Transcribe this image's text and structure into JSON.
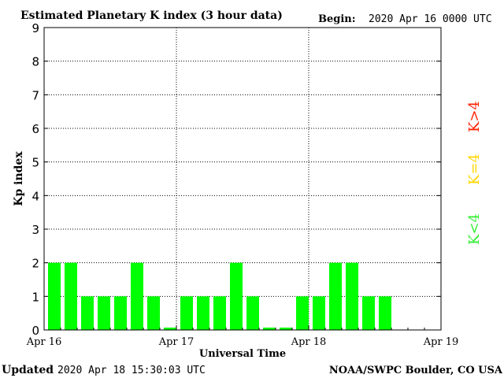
{
  "header": {
    "title": "Estimated Planetary K index (3 hour data)",
    "begin_label": "Begin:",
    "begin_value": "2020 Apr 16 0000 UTC"
  },
  "footer": {
    "updated_label": "Updated",
    "updated_value": "2020 Apr 18 15:30:03 UTC",
    "source": "NOAA/SWPC Boulder, CO USA"
  },
  "legend": [
    {
      "label": "K>4",
      "color": "#ff2200"
    },
    {
      "label": "K=4",
      "color": "#ffd700"
    },
    {
      "label": "K<4",
      "color": "#33ee33"
    }
  ],
  "colors": {
    "bar": "#00ff00",
    "axis": "#000000",
    "grid": "#000000"
  },
  "chart_data": {
    "type": "bar",
    "title": "Estimated Planetary K index (3 hour data)",
    "xlabel": "Universal Time",
    "ylabel": "Kp index",
    "ylim": [
      0,
      9
    ],
    "yticks": [
      "0",
      "1",
      "2",
      "3",
      "4",
      "5",
      "6",
      "7",
      "8",
      "9"
    ],
    "xticks": [
      "Apr 16",
      "Apr 17",
      "Apr 18",
      "Apr 19"
    ],
    "grid": true,
    "values": [
      2,
      2,
      1,
      1,
      1,
      2,
      1,
      0,
      1,
      1,
      1,
      2,
      1,
      0,
      0,
      1,
      1,
      2,
      2,
      1,
      1
    ]
  }
}
